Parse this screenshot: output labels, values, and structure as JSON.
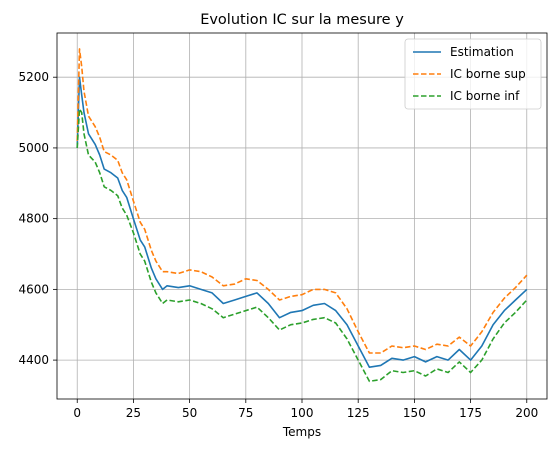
{
  "chart_data": {
    "type": "line",
    "title": "Evolution IC sur la mesure y",
    "xlabel": "Temps",
    "ylabel": "",
    "xlim": [
      -9,
      209
    ],
    "ylim": [
      4290,
      5325
    ],
    "xticks": [
      0,
      25,
      50,
      75,
      100,
      125,
      150,
      175,
      200
    ],
    "yticks": [
      4400,
      4600,
      4800,
      5000,
      5200
    ],
    "grid": true,
    "legend_position": "top-right",
    "series": [
      {
        "name": "Estimation",
        "color": "#1f77b4",
        "dash": "solid",
        "x": [
          0,
          1,
          2,
          3,
          5,
          8,
          10,
          12,
          15,
          18,
          20,
          22,
          25,
          28,
          30,
          33,
          35,
          38,
          40,
          45,
          50,
          55,
          60,
          65,
          70,
          75,
          80,
          85,
          90,
          95,
          100,
          105,
          110,
          115,
          120,
          125,
          130,
          135,
          140,
          145,
          150,
          155,
          160,
          165,
          170,
          175,
          180,
          185,
          190,
          195,
          200
        ],
        "y": [
          5000,
          5200,
          5150,
          5100,
          5040,
          5010,
          4980,
          4940,
          4930,
          4915,
          4880,
          4860,
          4800,
          4740,
          4720,
          4660,
          4630,
          4600,
          4610,
          4605,
          4610,
          4600,
          4590,
          4560,
          4570,
          4580,
          4590,
          4560,
          4520,
          4535,
          4540,
          4555,
          4560,
          4540,
          4500,
          4440,
          4380,
          4385,
          4405,
          4400,
          4410,
          4395,
          4410,
          4400,
          4430,
          4400,
          4440,
          4500,
          4540,
          4570,
          4600
        ]
      },
      {
        "name": "IC borne sup",
        "color": "#ff7f0e",
        "dash": "dashed",
        "x": [
          0,
          1,
          2,
          3,
          5,
          8,
          10,
          12,
          15,
          18,
          20,
          22,
          25,
          28,
          30,
          33,
          35,
          38,
          40,
          45,
          50,
          55,
          60,
          65,
          70,
          75,
          80,
          85,
          90,
          95,
          100,
          105,
          110,
          115,
          120,
          125,
          130,
          135,
          140,
          145,
          150,
          155,
          160,
          165,
          170,
          175,
          180,
          185,
          190,
          195,
          200
        ],
        "y": [
          5020,
          5280,
          5230,
          5160,
          5090,
          5060,
          5030,
          4990,
          4980,
          4965,
          4930,
          4910,
          4850,
          4790,
          4770,
          4710,
          4680,
          4650,
          4650,
          4645,
          4655,
          4650,
          4635,
          4610,
          4615,
          4630,
          4625,
          4600,
          4570,
          4580,
          4585,
          4600,
          4600,
          4590,
          4545,
          4480,
          4420,
          4420,
          4440,
          4435,
          4440,
          4430,
          4445,
          4440,
          4465,
          4440,
          4480,
          4535,
          4575,
          4605,
          4640
        ]
      },
      {
        "name": "IC borne inf",
        "color": "#2ca02c",
        "dash": "dashed",
        "x": [
          0,
          1,
          2,
          3,
          5,
          8,
          10,
          12,
          15,
          18,
          20,
          22,
          25,
          28,
          30,
          33,
          35,
          38,
          40,
          45,
          50,
          55,
          60,
          65,
          70,
          75,
          80,
          85,
          90,
          95,
          100,
          105,
          110,
          115,
          120,
          125,
          130,
          135,
          140,
          145,
          150,
          155,
          160,
          165,
          170,
          175,
          180,
          185,
          190,
          195,
          200
        ],
        "y": [
          5000,
          5110,
          5100,
          5040,
          4980,
          4960,
          4930,
          4890,
          4880,
          4865,
          4830,
          4810,
          4760,
          4700,
          4680,
          4620,
          4590,
          4560,
          4570,
          4565,
          4570,
          4560,
          4545,
          4520,
          4530,
          4540,
          4550,
          4520,
          4485,
          4500,
          4505,
          4515,
          4520,
          4505,
          4460,
          4400,
          4340,
          4345,
          4370,
          4365,
          4370,
          4355,
          4375,
          4365,
          4395,
          4365,
          4400,
          4460,
          4505,
          4535,
          4570
        ]
      }
    ]
  }
}
